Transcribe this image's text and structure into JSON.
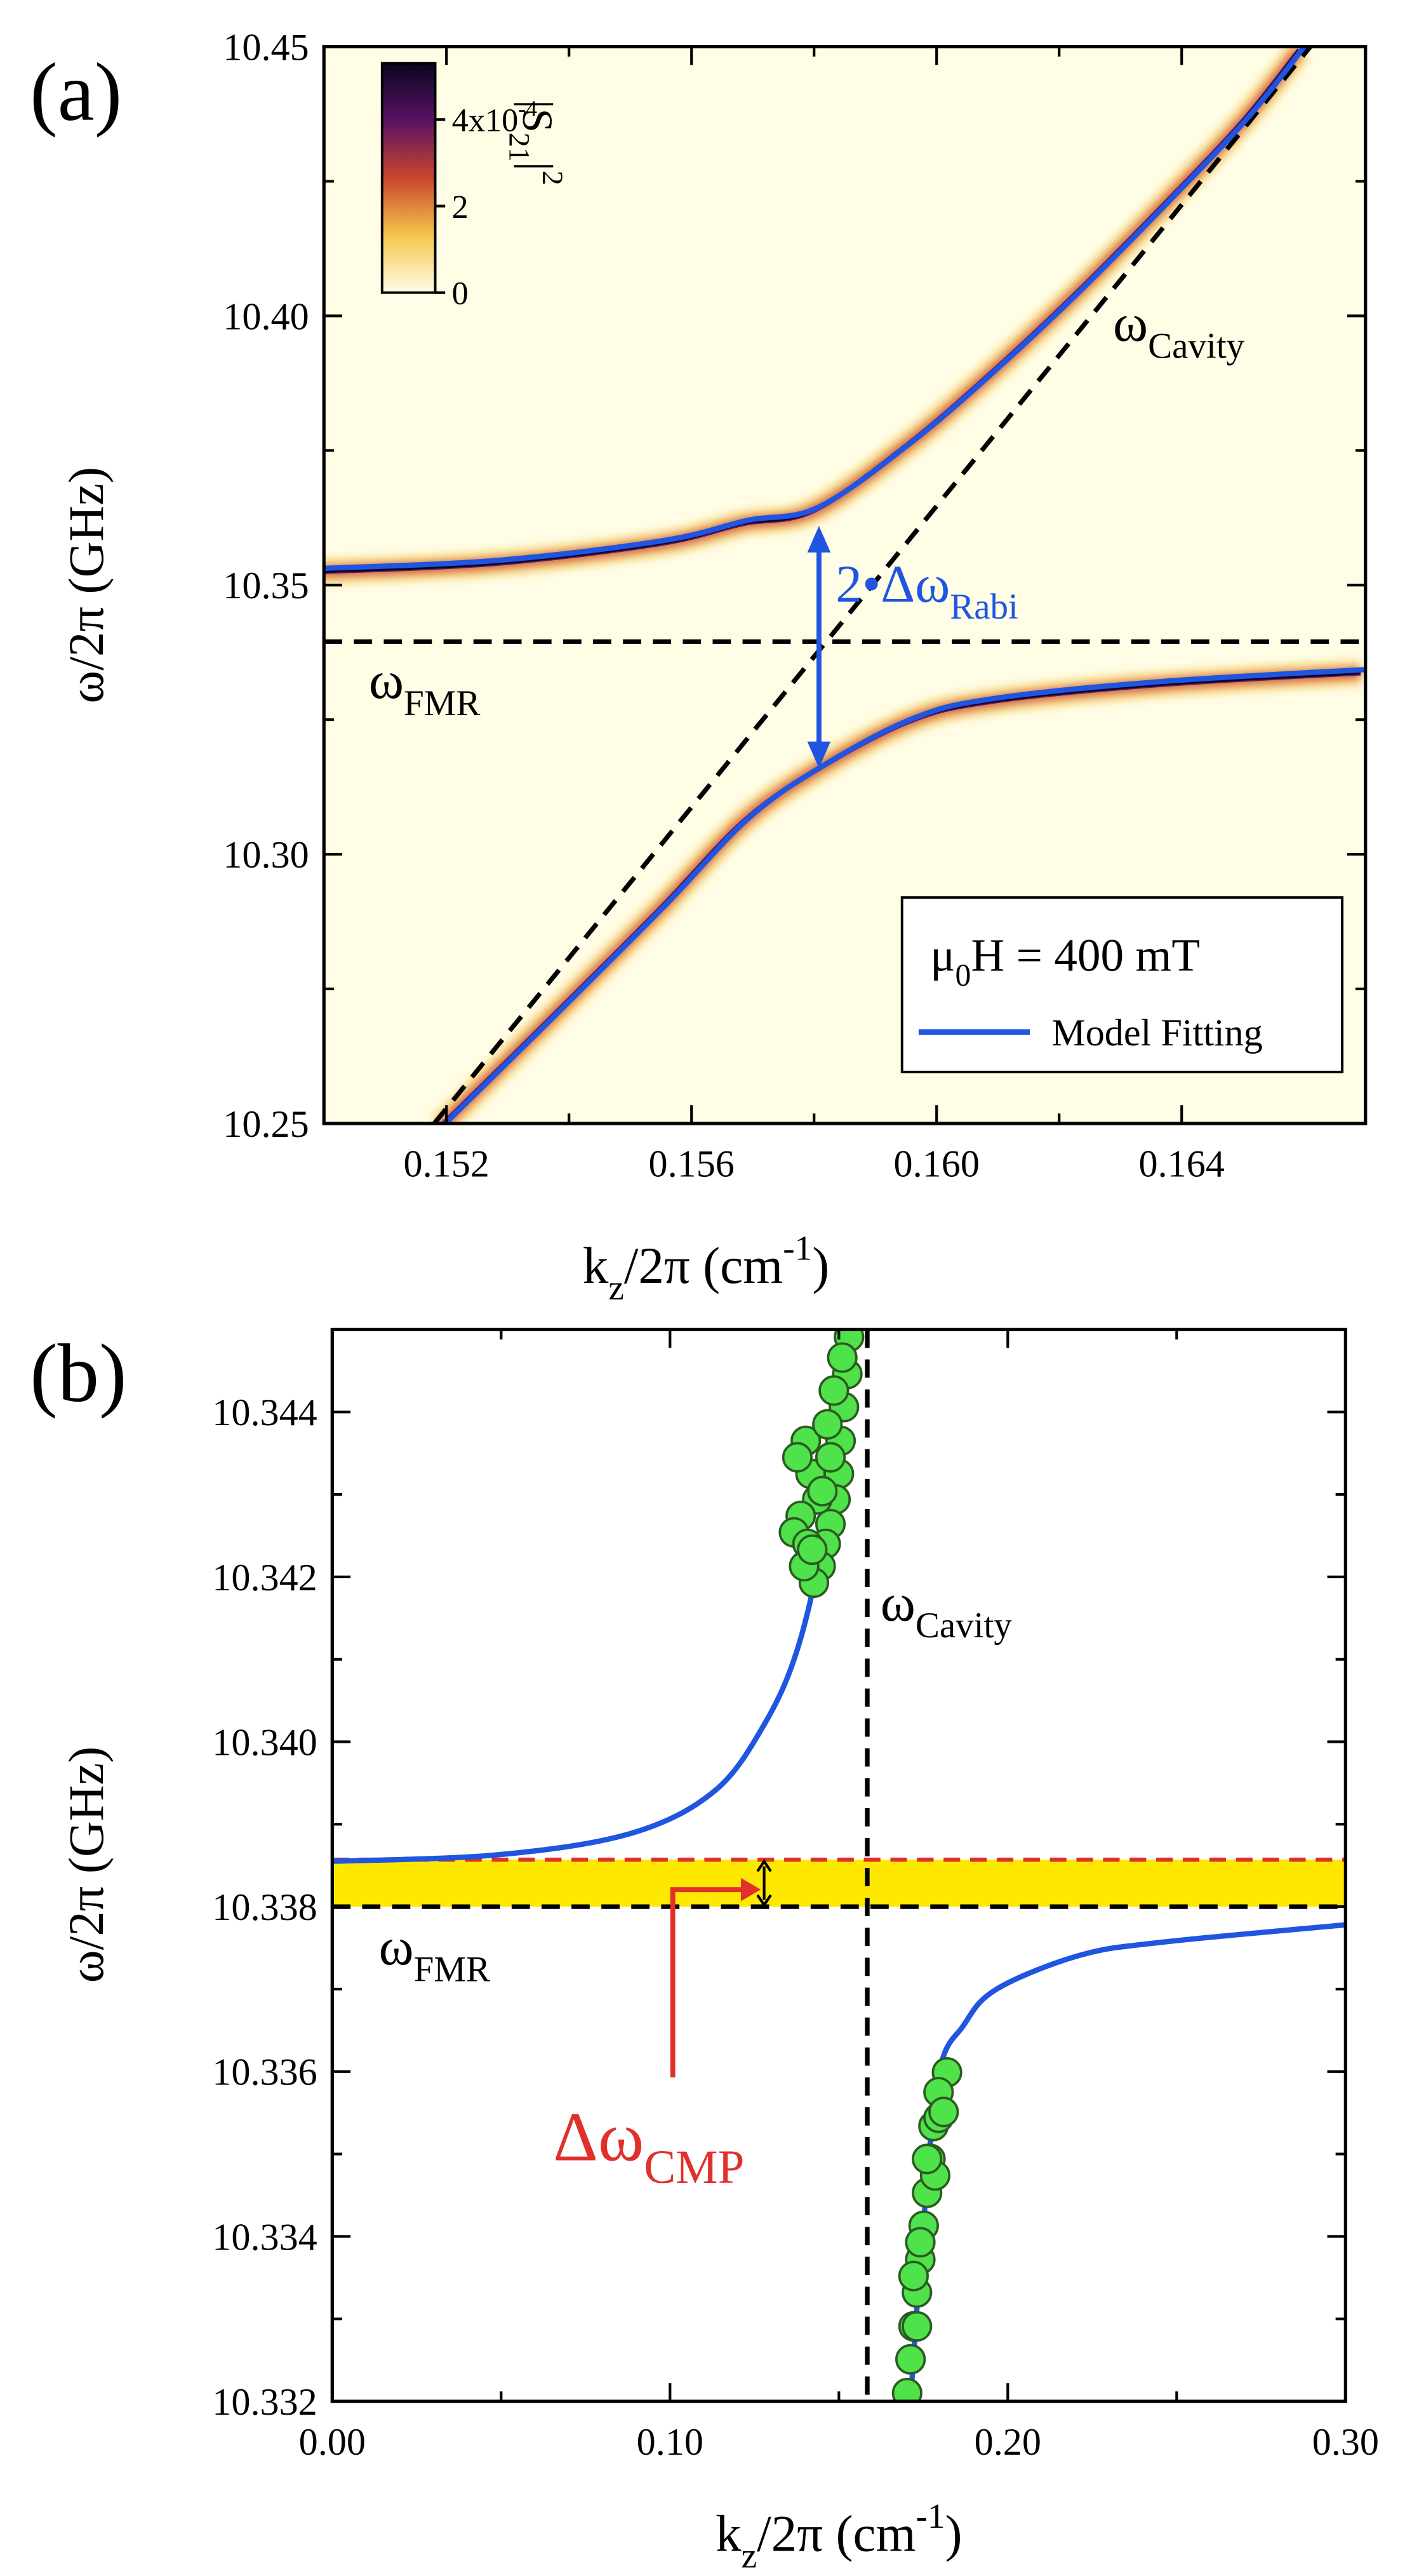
{
  "chart_data": [
    {
      "type": "line",
      "panel": "(a)",
      "xlim": [
        0.15,
        0.167
      ],
      "xticks": [
        0.152,
        0.156,
        {
          "value": 0.16,
          "label": "0.160"
        },
        0.164
      ],
      "ylim": [
        10.25,
        10.45
      ],
      "yticks": [
        10.25,
        {
          "value": 10.3,
          "label": "10.30"
        },
        10.35,
        {
          "value": 10.4,
          "label": "10.40"
        },
        10.45
      ],
      "x_label": [
        "k",
        {
          "sub": "z"
        },
        "/2π (cm",
        {
          "sup": "-1"
        },
        ")"
      ],
      "y_label": [
        "ω/2π (GHz)"
      ],
      "series": [
        {
          "name": "Model Fitting",
          "color": "#1f55e0",
          "x": [
            0.15,
            0.15285,
            0.15556,
            0.15691,
            0.15808,
            0.15963,
            0.16098,
            0.16234,
            0.16369,
            0.16505,
            0.166
          ],
          "values": [
            10.3531,
            10.3546,
            10.3583,
            10.362,
            10.3645,
            10.3769,
            10.3901,
            10.4046,
            10.4201,
            10.4364,
            10.45
          ]
        },
        {
          "color": "#1f55e0",
          "x": [
            0.15198,
            0.15366,
            0.15556,
            0.15691,
            0.15808,
            0.15963,
            0.16098,
            0.16369,
            0.167
          ],
          "values": [
            10.25,
            10.2688,
            10.2904,
            10.3065,
            10.316,
            10.3253,
            10.329,
            10.3321,
            10.3343
          ]
        }
      ],
      "cavity_line": {
        "x": [
          0.1518,
          0.1661
        ],
        "values": [
          10.25,
          10.45
        ]
      },
      "fmr_line": {
        "value": 10.3395
      },
      "rabi_arrow": {
        "from": 10.316,
        "to": 10.361,
        "color": "#1f55e0"
      },
      "annotations": {
        "cavity": [
          "ω",
          {
            "sub": "Cavity"
          }
        ],
        "fmr": [
          "ω",
          {
            "sub": "FMR"
          }
        ],
        "rabi": [
          "2•Δω",
          {
            "sub": "Rabi"
          }
        ]
      },
      "legend_title": [
        "μ",
        {
          "sub": "0"
        },
        "H = 400 mT"
      ],
      "colorbar": {
        "label": [
          "|S",
          {
            "sub": "21"
          },
          "|",
          {
            "sup": "2"
          }
        ],
        "clim": [
          0,
          0.00053
        ],
        "ticks": [
          0,
          {
            "value": 0.0002,
            "label": "2"
          },
          {
            "value": 0.0004,
            "label": [
              "4x10",
              {
                "sup": "-4"
              }
            ]
          }
        ],
        "colormap": [
          "#fffde6",
          "#f4c64c",
          "#c8462c",
          "#5a1262",
          "#0a0522"
        ]
      }
    },
    {
      "type": "scatter",
      "panel": "(b)",
      "xlim": [
        0,
        0.3
      ],
      "xticks": [
        {
          "value": 0,
          "label": "0.00"
        },
        {
          "value": 0.1,
          "label": "0.10"
        },
        {
          "value": 0.2,
          "label": "0.20"
        },
        {
          "value": 0.3,
          "label": "0.30"
        }
      ],
      "ylim": [
        10.332,
        10.345
      ],
      "yticks": [
        10.332,
        10.334,
        10.336,
        10.338,
        {
          "value": 10.34,
          "label": "10.340"
        },
        10.342,
        10.344
      ],
      "x_label": [
        "k",
        {
          "sub": "z"
        },
        "/2π (cm",
        {
          "sup": "-1"
        },
        ")"
      ],
      "y_label": [
        "ω/2π (GHz)"
      ],
      "series": [
        {
          "color": "#1f55e0",
          "x": [
            0,
            0.0492,
            0.0885,
            0.1131,
            0.1279,
            0.1377,
            0.1451,
            0.149,
            0.1515
          ],
          "values": [
            10.33855,
            10.33863,
            10.33889,
            10.3394,
            10.34021,
            10.34112,
            10.34244,
            10.34385,
            10.34487
          ]
        },
        {
          "color": "#1f55e0",
          "x": [
            0.1712,
            0.1746,
            0.1795,
            0.1869,
            0.1967,
            0.2213,
            0.2459,
            0.3
          ],
          "values": [
            10.332,
            10.33393,
            10.33595,
            10.33656,
            10.337,
            10.33741,
            10.33757,
            10.33778
          ]
        }
      ],
      "points": {
        "color": "#4fe24a",
        "edge": "#2c5a22",
        "x": [
          0.153,
          0.1525,
          0.1515,
          0.1505,
          0.15,
          0.149,
          0.1475,
          0.1461,
          0.1446,
          0.1426,
          0.1402,
          0.1416,
          0.1436,
          0.1387,
          0.1367,
          0.1377,
          0.1407,
          0.1466,
          0.1475,
          0.1451,
          0.1397,
          0.1421,
          0.1485,
          0.151,
          0.182,
          0.1795,
          0.178,
          0.1771,
          0.1761,
          0.1751,
          0.1741,
          0.1731,
          0.1721,
          0.1712,
          0.1702,
          0.1795,
          0.1785,
          0.1741,
          0.1721,
          0.181,
          0.1761,
          0.1731
        ],
        "values": [
          10.34491,
          10.34446,
          10.34406,
          10.34365,
          10.34325,
          10.34294,
          10.34264,
          10.3424,
          10.34213,
          10.34193,
          10.34365,
          10.34325,
          10.34294,
          10.34274,
          10.34254,
          10.34345,
          10.3424,
          10.34385,
          10.34345,
          10.34304,
          10.34213,
          10.34233,
          10.34426,
          10.34466,
          10.33599,
          10.33575,
          10.33534,
          10.33494,
          10.33453,
          10.33413,
          10.33372,
          10.33332,
          10.33291,
          10.33251,
          10.3321,
          10.33544,
          10.33474,
          10.33393,
          10.33352,
          10.33551,
          10.33494,
          10.33291
        ]
      },
      "cavity_line": {
        "value": 0.1584
      },
      "fmr_line": {
        "value": 10.338
      },
      "shifted_line": {
        "value": 10.33857,
        "color": "#e0302a"
      },
      "band_color": "#ffe800",
      "annotations": {
        "cavity": [
          "ω",
          {
            "sub": "Cavity"
          }
        ],
        "fmr": [
          "ω",
          {
            "sub": "FMR"
          }
        ],
        "cmp": [
          "Δω",
          {
            "sub": "CMP"
          }
        ]
      }
    }
  ]
}
